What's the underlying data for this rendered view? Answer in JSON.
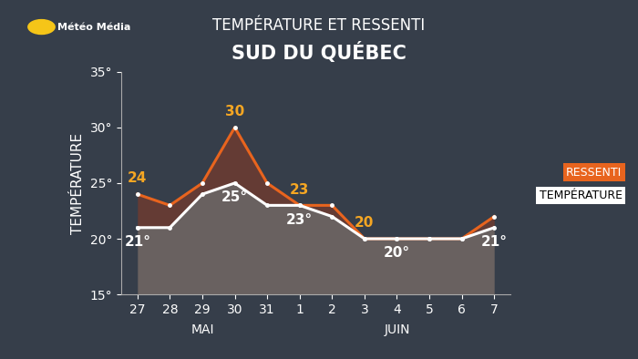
{
  "brand": "Météo Média",
  "chart_data": {
    "type": "line",
    "title": "TEMPÉRATURE ET RESSENTI",
    "subtitle": "SUD DU QUÉBEC",
    "y_label": "TEMPÉRATURE",
    "categories": [
      "27",
      "28",
      "29",
      "30",
      "31",
      "1",
      "2",
      "3",
      "4",
      "5",
      "6",
      "7"
    ],
    "category_groups": [
      {
        "label": "MAI",
        "categories": [
          "27",
          "28",
          "29",
          "30",
          "31"
        ]
      },
      {
        "label": "JUIN",
        "categories": [
          "1",
          "2",
          "3",
          "4",
          "5",
          "6",
          "7"
        ]
      }
    ],
    "series": [
      {
        "name": "RESSENTI",
        "color": "#e8641e",
        "values": [
          24,
          23,
          25,
          30,
          25,
          23,
          23,
          20,
          20,
          20,
          20,
          22
        ],
        "value_labels": [
          "24",
          null,
          null,
          "30",
          null,
          "23",
          null,
          "20",
          null,
          null,
          null,
          null
        ]
      },
      {
        "name": "TEMPÉRATURE",
        "color": "#ffffff",
        "values": [
          21,
          21,
          24,
          25,
          23,
          23,
          22,
          20,
          20,
          20,
          20,
          21
        ],
        "value_labels": [
          "21°",
          null,
          null,
          "25°",
          null,
          "23°",
          null,
          null,
          "20°",
          null,
          null,
          "21°"
        ]
      }
    ],
    "ylim": [
      15,
      35
    ],
    "yticks": [
      {
        "value": 15,
        "label": "15°"
      },
      {
        "value": 20,
        "label": "20°"
      },
      {
        "value": 25,
        "label": "25°"
      },
      {
        "value": 30,
        "label": "30°"
      },
      {
        "value": 35,
        "label": "35°"
      }
    ],
    "legend": "center right",
    "grid": false
  }
}
